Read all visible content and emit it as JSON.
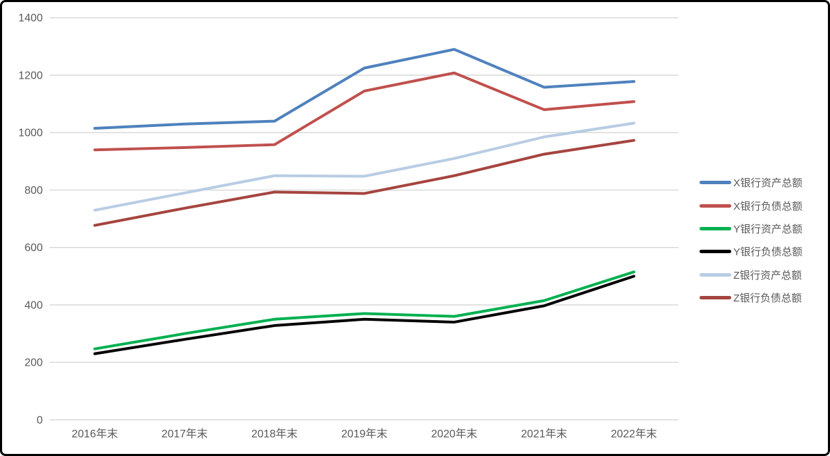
{
  "chart_data": {
    "type": "line",
    "title": "",
    "xlabel": "",
    "ylabel": "",
    "categories": [
      "2016年末",
      "2017年末",
      "2018年末",
      "2019年末",
      "2020年末",
      "2021年末",
      "2022年末"
    ],
    "series": [
      {
        "name": "X银行资产总额",
        "color": "#4F81BD",
        "values": [
          1015,
          1030,
          1040,
          1225,
          1290,
          1158,
          1178
        ]
      },
      {
        "name": "X银行负债总额",
        "color": "#C0504D",
        "values": [
          940,
          948,
          958,
          1145,
          1208,
          1080,
          1108
        ]
      },
      {
        "name": "Y银行资产总额",
        "color": "#00B050",
        "values": [
          247,
          300,
          350,
          370,
          360,
          415,
          515
        ]
      },
      {
        "name": "Y银行负债总额",
        "color": "#000000",
        "values": [
          230,
          280,
          328,
          350,
          340,
          397,
          500
        ]
      },
      {
        "name": "Z银行资产总额",
        "color": "#B8CCE4",
        "values": [
          730,
          790,
          850,
          848,
          910,
          985,
          1033
        ]
      },
      {
        "name": "Z银行负债总额",
        "color": "#A5443F",
        "values": [
          677,
          737,
          793,
          788,
          850,
          925,
          973
        ]
      }
    ],
    "ylim": [
      0,
      1400
    ],
    "y_ticks": [
      0,
      200,
      400,
      600,
      800,
      1000,
      1200,
      1400
    ],
    "grid": "horizontal",
    "legend_position": "right",
    "colors": {
      "gridline": "#D9D9D9",
      "tick_label": "#595959",
      "frame_border": "#000000",
      "background": "#ffffff"
    }
  }
}
